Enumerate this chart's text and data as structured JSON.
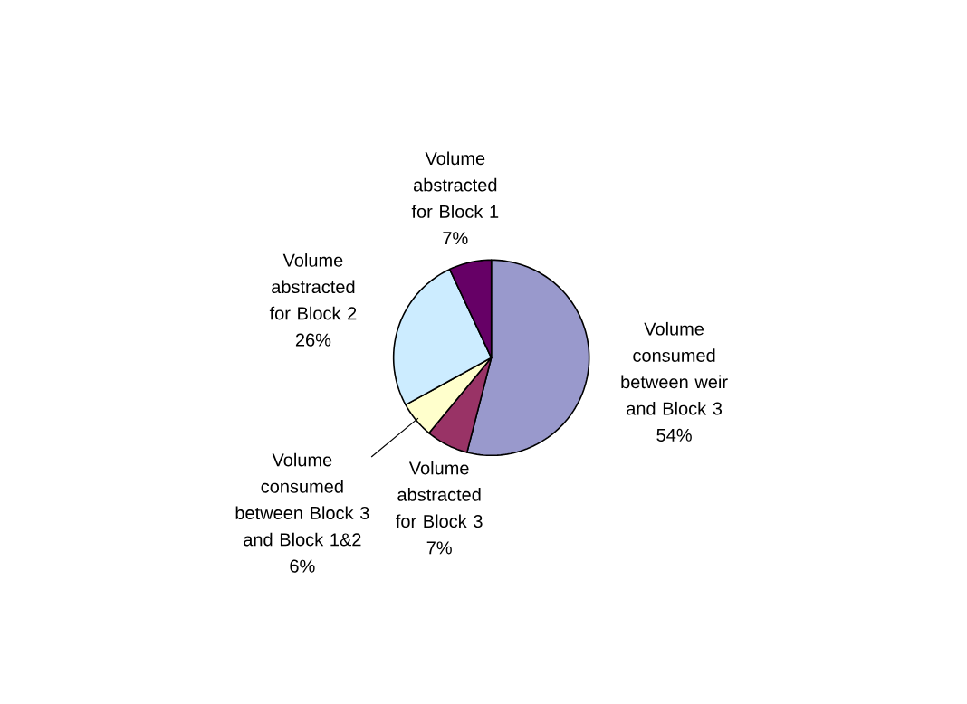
{
  "chart_data": {
    "type": "pie",
    "categories": [
      "Volume consumed between weir and Block 3",
      "Volume abstracted for Block 3",
      "Volume consumed between Block 3 and Block 1&2",
      "Volume abstracted for Block 2",
      "Volume abstracted for Block 1"
    ],
    "values": [
      54,
      7,
      6,
      26,
      7
    ],
    "colors": [
      "#9999cc",
      "#993366",
      "#ffffcc",
      "#ccecff",
      "#660066"
    ],
    "value_labels": [
      "54%",
      "7%",
      "6%",
      "26%",
      "7%"
    ]
  }
}
